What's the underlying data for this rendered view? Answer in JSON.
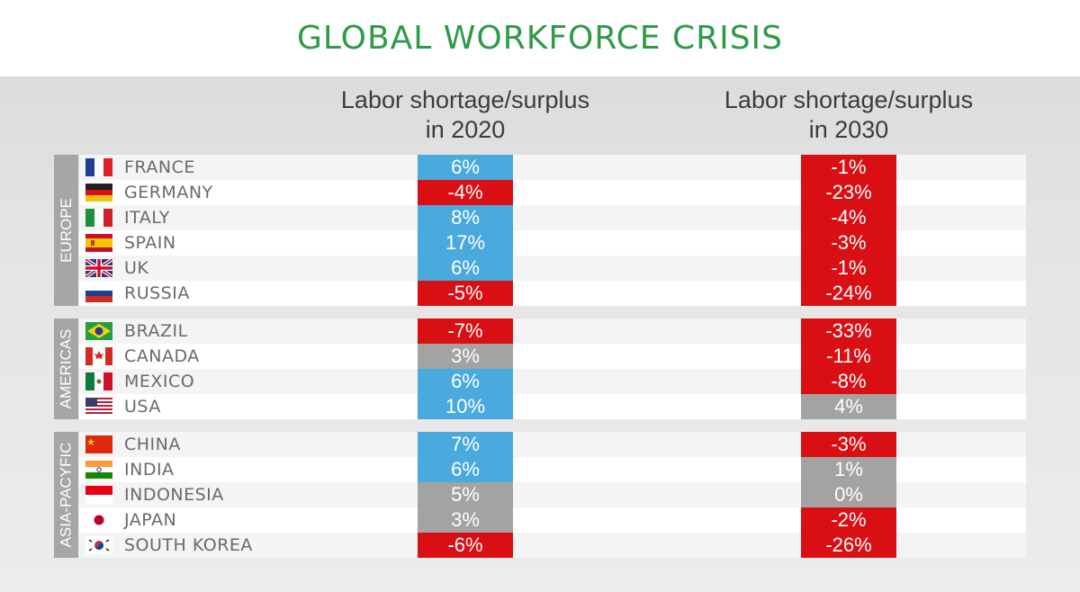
{
  "title": "GLOBAL WORKFORCE CRISIS",
  "colors": {
    "positive": "#4aa9dd",
    "negative": "#d90f14",
    "neutral": "#a3a3a3",
    "title": "#2f9a48"
  },
  "chart_data": {
    "type": "table",
    "title": "GLOBAL WORKFORCE CRISIS",
    "columns": [
      [
        "Labor shortage/surplus",
        "in 2020"
      ],
      [
        "Labor shortage/surplus",
        "in 2030"
      ]
    ],
    "regions": [
      {
        "name": "EUROPE",
        "rows": [
          {
            "country": "FRANCE",
            "flag": "france-flag-icon",
            "v2020": "6%",
            "c2020": "positive",
            "v2030": "-1%",
            "c2030": "negative"
          },
          {
            "country": "GERMANY",
            "flag": "germany-flag-icon",
            "v2020": "-4%",
            "c2020": "negative",
            "v2030": "-23%",
            "c2030": "negative"
          },
          {
            "country": "ITALY",
            "flag": "italy-flag-icon",
            "v2020": "8%",
            "c2020": "positive",
            "v2030": "-4%",
            "c2030": "negative"
          },
          {
            "country": "SPAIN",
            "flag": "spain-flag-icon",
            "v2020": "17%",
            "c2020": "positive",
            "v2030": "-3%",
            "c2030": "negative"
          },
          {
            "country": "UK",
            "flag": "uk-flag-icon",
            "v2020": "6%",
            "c2020": "positive",
            "v2030": "-1%",
            "c2030": "negative"
          },
          {
            "country": "RUSSIA",
            "flag": "russia-flag-icon",
            "v2020": "-5%",
            "c2020": "negative",
            "v2030": "-24%",
            "c2030": "negative"
          }
        ]
      },
      {
        "name": "AMERICAS",
        "rows": [
          {
            "country": "BRAZIL",
            "flag": "brazil-flag-icon",
            "v2020": "-7%",
            "c2020": "negative",
            "v2030": "-33%",
            "c2030": "negative"
          },
          {
            "country": "CANADA",
            "flag": "canada-flag-icon",
            "v2020": "3%",
            "c2020": "neutral",
            "v2030": "-11%",
            "c2030": "negative"
          },
          {
            "country": "MEXICO",
            "flag": "mexico-flag-icon",
            "v2020": "6%",
            "c2020": "positive",
            "v2030": "-8%",
            "c2030": "negative"
          },
          {
            "country": "USA",
            "flag": "usa-flag-icon",
            "v2020": "10%",
            "c2020": "positive",
            "v2030": "4%",
            "c2030": "neutral"
          }
        ]
      },
      {
        "name": "ASIA-PACYFIC",
        "rows": [
          {
            "country": "CHINA",
            "flag": "china-flag-icon",
            "v2020": "7%",
            "c2020": "positive",
            "v2030": "-3%",
            "c2030": "negative"
          },
          {
            "country": "INDIA",
            "flag": "india-flag-icon",
            "v2020": "6%",
            "c2020": "positive",
            "v2030": "1%",
            "c2030": "neutral"
          },
          {
            "country": "INDONESIA",
            "flag": "indonesia-flag-icon",
            "v2020": "5%",
            "c2020": "neutral",
            "v2030": "0%",
            "c2030": "neutral"
          },
          {
            "country": "JAPAN",
            "flag": "japan-flag-icon",
            "v2020": "3%",
            "c2020": "neutral",
            "v2030": "-2%",
            "c2030": "negative"
          },
          {
            "country": "SOUTH KOREA",
            "flag": "south-korea-flag-icon",
            "v2020": "-6%",
            "c2020": "negative",
            "v2030": "-26%",
            "c2030": "negative"
          }
        ]
      }
    ]
  }
}
